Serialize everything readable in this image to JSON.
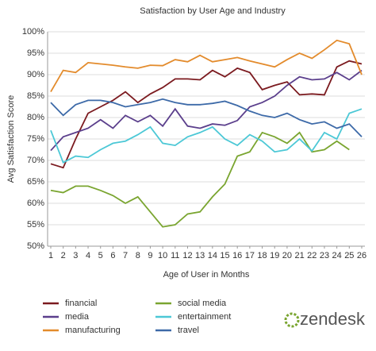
{
  "chart_data": {
    "type": "line",
    "title": "Satisfaction by User Age and Industry",
    "x_label": "Age of User in Months",
    "y_label": "Avg Satisfaction Score",
    "brand": "zendesk",
    "x": [
      1,
      2,
      3,
      4,
      5,
      6,
      7,
      8,
      9,
      10,
      11,
      12,
      13,
      14,
      15,
      16,
      17,
      18,
      19,
      20,
      21,
      22,
      23,
      24,
      25,
      26
    ],
    "xlim": [
      1,
      26
    ],
    "xticks": [
      1,
      2,
      3,
      4,
      5,
      6,
      7,
      8,
      9,
      10,
      11,
      12,
      13,
      14,
      15,
      16,
      17,
      18,
      19,
      20,
      21,
      22,
      23,
      24,
      25,
      26
    ],
    "ylim": [
      50,
      100
    ],
    "yticks": [
      {
        "value": 50,
        "label": "50%"
      },
      {
        "value": 55,
        "label": "55%"
      },
      {
        "value": 60,
        "label": "60%"
      },
      {
        "value": 65,
        "label": "65%"
      },
      {
        "value": 70,
        "label": "70%"
      },
      {
        "value": 75,
        "label": "75%"
      },
      {
        "value": 80,
        "label": "80%"
      },
      {
        "value": 85,
        "label": "85%"
      },
      {
        "value": 90,
        "label": "90%"
      },
      {
        "value": 95,
        "label": "95%"
      },
      {
        "value": 100,
        "label": "100%"
      }
    ],
    "grid": true,
    "series": [
      {
        "name": "financial",
        "color": "#7b1a1f",
        "values": [
          69.2,
          68.3,
          75,
          81,
          82.5,
          84,
          86,
          83.5,
          85.5,
          87,
          89,
          89,
          88.8,
          91,
          89.5,
          91.5,
          90.5,
          86.5,
          87.5,
          88.3,
          85.3,
          85.5,
          85.3,
          91.8,
          93.2,
          92.5
        ]
      },
      {
        "name": "social media",
        "color": "#7aa530",
        "values": [
          63,
          62.5,
          64,
          64,
          63,
          61.8,
          60,
          61.5,
          58,
          54.5,
          55,
          57.5,
          58,
          61.5,
          64.5,
          71,
          72,
          76.5,
          75.5,
          74,
          76.5,
          72,
          72.5,
          74.5,
          72.5,
          null
        ]
      },
      {
        "name": "media",
        "color": "#5b3f8c",
        "values": [
          72.3,
          75.5,
          76.5,
          77.5,
          79.5,
          77.5,
          80.5,
          79,
          80.5,
          78,
          82,
          78,
          77.5,
          78.5,
          78.2,
          79.3,
          82.5,
          83.5,
          85,
          87.5,
          89.5,
          88.8,
          89,
          90.5,
          88.8,
          91
        ]
      },
      {
        "name": "entertainment",
        "color": "#4cc8d6",
        "values": [
          77,
          69.5,
          71,
          70.7,
          72.5,
          74,
          74.5,
          76,
          77.8,
          74,
          73.5,
          75.5,
          76.5,
          77.8,
          75,
          73.5,
          76,
          74.5,
          72,
          72.5,
          75,
          72.2,
          76.5,
          75,
          81,
          82
        ]
      },
      {
        "name": "manufacturing",
        "color": "#e38b2c",
        "values": [
          86,
          91,
          90.5,
          92.8,
          92.5,
          92.2,
          91.8,
          91.5,
          92.2,
          92.1,
          93.5,
          93,
          94.5,
          93,
          93.5,
          94,
          93.2,
          92.5,
          91.8,
          93.5,
          95,
          93.8,
          95.8,
          98,
          97.2,
          90
        ]
      },
      {
        "name": "travel",
        "color": "#3d6aa8",
        "values": [
          83.5,
          80.5,
          83,
          84,
          84,
          83.5,
          82.5,
          83,
          83.5,
          84.3,
          83.5,
          83,
          83,
          83.3,
          83.8,
          82.8,
          81.5,
          80.5,
          80,
          81,
          79.5,
          78.5,
          79,
          77.5,
          78.5,
          75.5
        ]
      }
    ]
  }
}
